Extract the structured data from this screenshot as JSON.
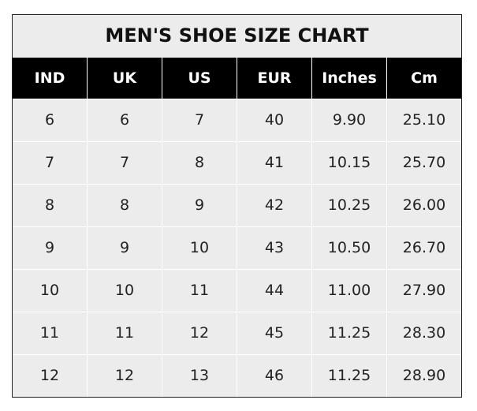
{
  "title": "MEN'S SHOE SIZE CHART",
  "columns": [
    "IND",
    "UK",
    "US",
    "EUR",
    "Inches",
    "Cm"
  ],
  "rows": [
    [
      "6",
      "6",
      "7",
      "40",
      "9.90",
      "25.10"
    ],
    [
      "7",
      "7",
      "8",
      "41",
      "10.15",
      "25.70"
    ],
    [
      "8",
      "8",
      "9",
      "42",
      "10.25",
      "26.00"
    ],
    [
      "9",
      "9",
      "10",
      "43",
      "10.50",
      "26.70"
    ],
    [
      "10",
      "10",
      "11",
      "44",
      "11.00",
      "27.90"
    ],
    [
      "11",
      "11",
      "12",
      "45",
      "11.25",
      "28.30"
    ],
    [
      "12",
      "12",
      "13",
      "46",
      "11.25",
      "28.90"
    ]
  ],
  "colors": {
    "header_bg": "#000000",
    "body_bg": "#ececec",
    "grid": "#ffffff"
  }
}
